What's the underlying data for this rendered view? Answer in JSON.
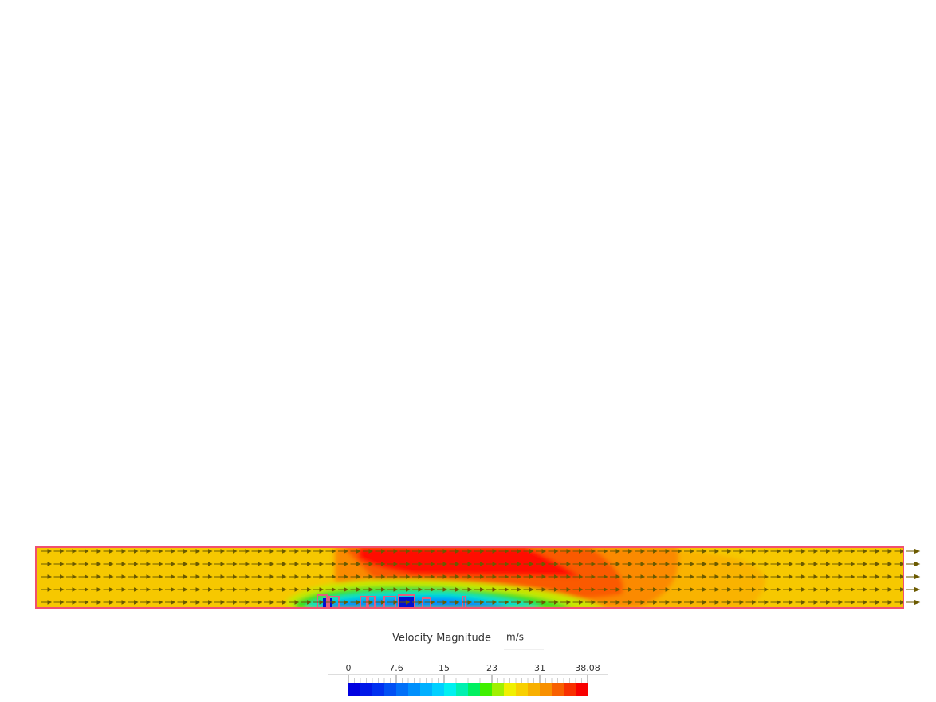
{
  "legend": {
    "title": "Velocity Magnitude",
    "unit": "m/s",
    "ticks": [
      0,
      7.6,
      15,
      23,
      31,
      38.08
    ]
  }
}
